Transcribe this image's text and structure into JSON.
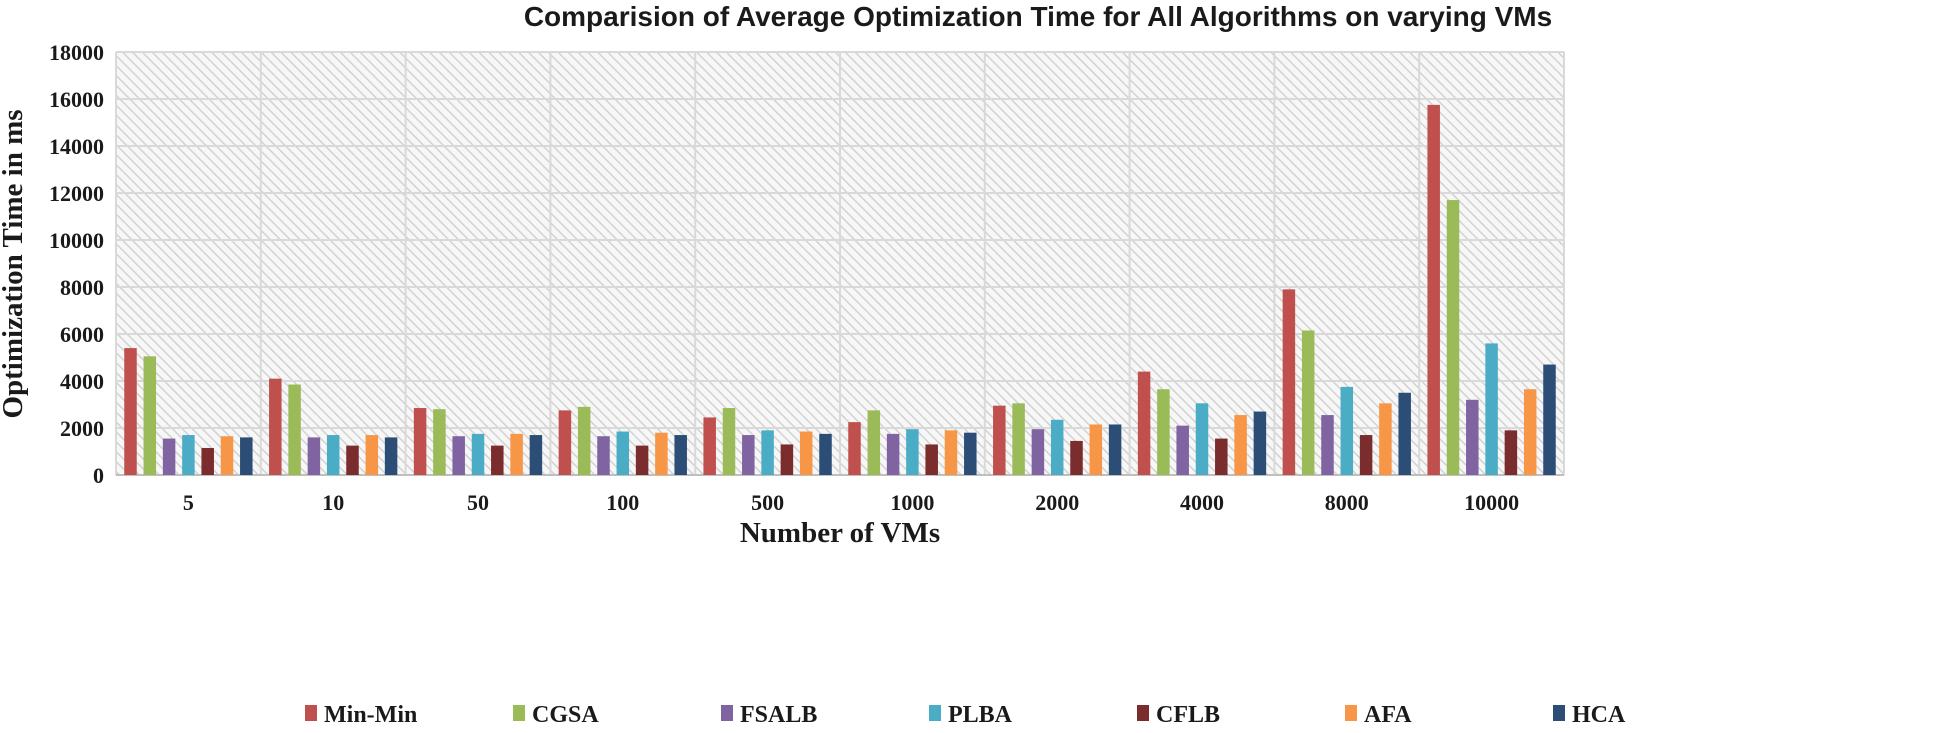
{
  "chart_data": {
    "type": "bar",
    "title": "Comparision of Average Optimization Time for All Algorithms on varying VMs",
    "xlabel": "Number of VMs",
    "ylabel": "Optimization Time in ms",
    "ylim": [
      0,
      18000
    ],
    "yticks": [
      "0",
      "2000",
      "4000",
      "6000",
      "8000",
      "10000",
      "12000",
      "14000",
      "16000",
      "18000"
    ],
    "grid": true,
    "legend_position": "bottom",
    "categories": [
      "5",
      "10",
      "50",
      "100",
      "500",
      "1000",
      "2000",
      "4000",
      "8000",
      "10000"
    ],
    "series": [
      {
        "name": "Min-Min",
        "color": "#c0504d",
        "values": [
          5400,
          4100,
          2850,
          2750,
          2450,
          2250,
          2950,
          4400,
          7900,
          15750
        ]
      },
      {
        "name": "CGSA",
        "color": "#9bbb59",
        "values": [
          5050,
          3850,
          2800,
          2900,
          2850,
          2750,
          3050,
          3650,
          6150,
          11700
        ]
      },
      {
        "name": "FSALB",
        "color": "#8064a2",
        "values": [
          1550,
          1600,
          1650,
          1650,
          1700,
          1750,
          1950,
          2100,
          2550,
          3200
        ]
      },
      {
        "name": "PLBA",
        "color": "#4bacc6",
        "values": [
          1700,
          1700,
          1750,
          1850,
          1900,
          1950,
          2350,
          3050,
          3750,
          5600
        ]
      },
      {
        "name": "CFLB",
        "color": "#7b2c2c",
        "values": [
          1150,
          1250,
          1250,
          1250,
          1300,
          1300,
          1450,
          1550,
          1700,
          1900
        ]
      },
      {
        "name": "AFA",
        "color": "#f79646",
        "values": [
          1650,
          1700,
          1750,
          1800,
          1850,
          1900,
          2150,
          2550,
          3050,
          3650
        ]
      },
      {
        "name": "HCA",
        "color": "#2c4d75",
        "values": [
          1600,
          1600,
          1700,
          1700,
          1750,
          1800,
          2150,
          2700,
          3500,
          4700
        ]
      }
    ]
  }
}
